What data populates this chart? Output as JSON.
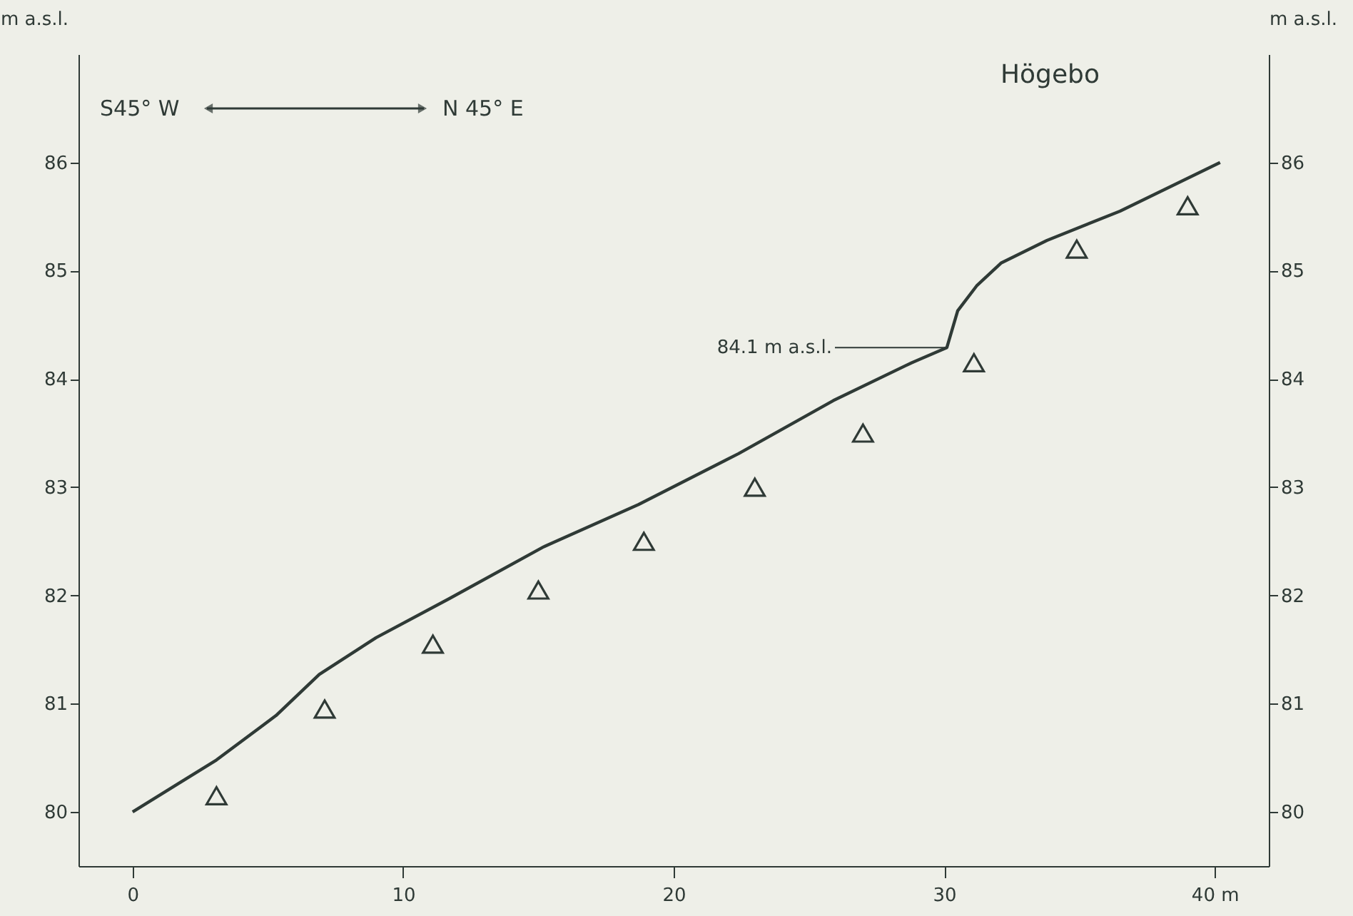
{
  "chart_data": {
    "type": "line",
    "title": "Högebo",
    "ylabel": "m a.s.l.",
    "y2label": "m a.s.l.",
    "annotations": [
      "S45° W",
      "N 45° E",
      {
        "text": "84.1 m a.s.l.",
        "x": 30.1,
        "y": 84.29
      }
    ],
    "series": [
      {
        "type": "line",
        "color": "#2f3a36",
        "marker": "none",
        "line_style": "solid",
        "x": [
          0,
          3.1,
          5.3,
          6.9,
          9.0,
          11.7,
          15.2,
          18.7,
          22.4,
          25.9,
          28.8,
          30.1,
          30.5,
          31.2,
          32.1,
          33.8,
          36.5,
          40.2
        ],
        "values": [
          80.0,
          80.48,
          80.89,
          81.27,
          81.61,
          81.97,
          82.45,
          82.84,
          83.31,
          83.8,
          84.15,
          84.29,
          84.63,
          84.86,
          85.07,
          85.28,
          85.55,
          86.0
        ]
      },
      {
        "type": "scatter",
        "color": "#2f3a36",
        "marker": "triangle",
        "x": [
          3.1,
          7.1,
          11.1,
          15.0,
          18.9,
          23.0,
          27.0,
          31.1,
          34.9,
          39.0
        ],
        "values": [
          80.15,
          80.95,
          81.55,
          82.05,
          82.5,
          83.0,
          83.5,
          84.15,
          85.2,
          85.6
        ]
      }
    ],
    "xlim": [
      -2,
      42
    ],
    "xticks": [
      0,
      10,
      20,
      30,
      {
        "value": 40,
        "label": "40 m"
      }
    ],
    "ylim": [
      79.5,
      87
    ],
    "yticks": [
      80,
      81,
      82,
      83,
      84,
      85,
      86
    ],
    "y2lim": [
      79.5,
      87
    ],
    "y2ticks": [
      80,
      81,
      82,
      83,
      84,
      85,
      86
    ],
    "grid": false
  }
}
